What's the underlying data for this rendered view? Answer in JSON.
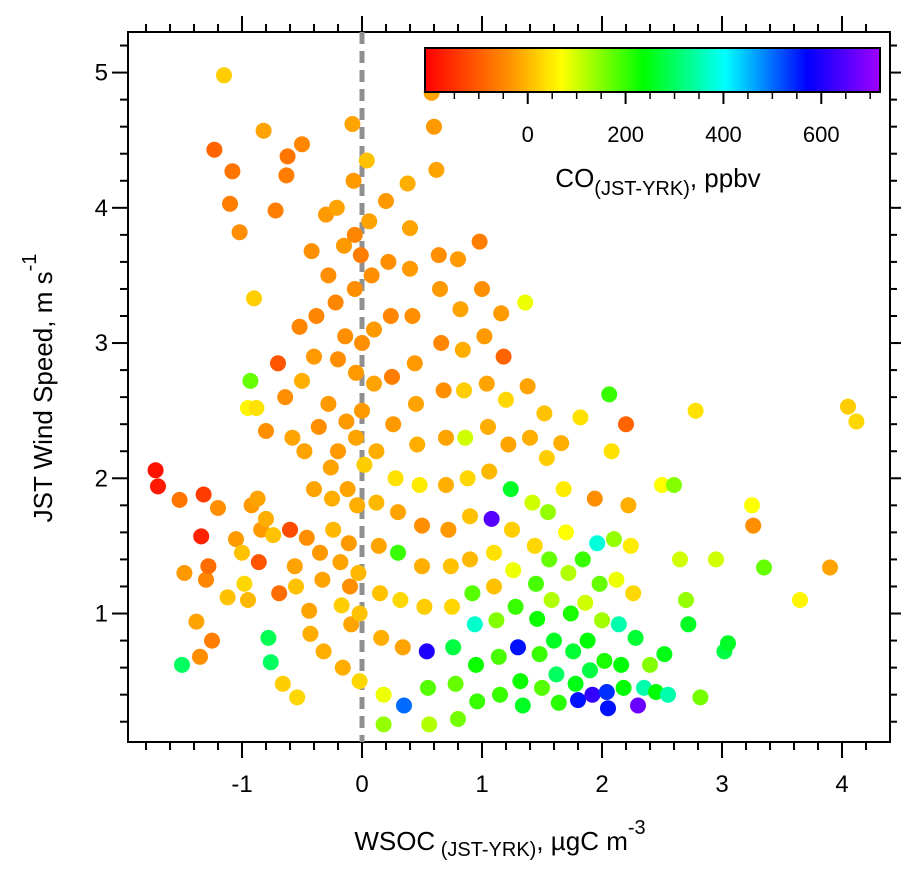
{
  "chart_data": {
    "type": "scatter",
    "xlabel": {
      "main": "WSOC",
      "sub": " (JST-YRK)",
      "mid": ", µgC m",
      "sup": "-3"
    },
    "ylabel": {
      "main": "JST Wind Speed, m s",
      "sup": "-1"
    },
    "xlim": [
      -1.95,
      4.4
    ],
    "ylim": [
      0.05,
      5.3
    ],
    "xticks": [
      "-1",
      "0",
      "1",
      "2",
      "3",
      "4"
    ],
    "yticks": [
      "1",
      "2",
      "3",
      "4",
      "5"
    ],
    "xtick_values": [
      -1,
      0,
      1,
      2,
      3,
      4
    ],
    "ytick_values": [
      1,
      2,
      3,
      4,
      5
    ],
    "reference_line": {
      "x": 0,
      "style": "dashed",
      "color": "#909090"
    },
    "colorbar": {
      "label_main": "CO",
      "label_sub": "(JST-YRK)",
      "label_rest": ", ppbv",
      "ticks": [
        "0",
        "200",
        "400",
        "600"
      ],
      "tick_values": [
        0,
        200,
        400,
        600
      ],
      "range": [
        -210,
        720
      ],
      "placement": "top-right"
    },
    "grid": false,
    "points": [
      [
        -1.72,
        2.06,
        -190
      ],
      [
        -1.7,
        1.94,
        -180
      ],
      [
        -1.52,
        1.84,
        -70
      ],
      [
        -1.5,
        0.62,
        300
      ],
      [
        -1.48,
        1.3,
        -30
      ],
      [
        -1.38,
        0.94,
        -20
      ],
      [
        -1.35,
        0.68,
        -40
      ],
      [
        -1.32,
        1.88,
        -140
      ],
      [
        -1.34,
        1.57,
        -170
      ],
      [
        -1.3,
        1.25,
        -50
      ],
      [
        -1.28,
        1.35,
        -80
      ],
      [
        -1.25,
        0.8,
        -60
      ],
      [
        -1.23,
        4.43,
        -90
      ],
      [
        -1.2,
        1.78,
        -40
      ],
      [
        -1.15,
        4.98,
        20
      ],
      [
        -1.12,
        1.12,
        10
      ],
      [
        -1.08,
        4.27,
        -70
      ],
      [
        -1.1,
        4.03,
        -60
      ],
      [
        -1.05,
        1.55,
        -30
      ],
      [
        -1.02,
        3.82,
        -40
      ],
      [
        -1.0,
        1.45,
        10
      ],
      [
        -0.98,
        1.22,
        30
      ],
      [
        -0.95,
        2.52,
        60
      ],
      [
        -0.93,
        2.72,
        170
      ],
      [
        -0.95,
        1.1,
        0
      ],
      [
        -0.92,
        1.8,
        -30
      ],
      [
        -0.9,
        3.33,
        20
      ],
      [
        -0.88,
        2.52,
        40
      ],
      [
        -0.87,
        1.85,
        -20
      ],
      [
        -0.86,
        1.38,
        -110
      ],
      [
        -0.84,
        1.62,
        -30
      ],
      [
        -0.82,
        4.57,
        -20
      ],
      [
        -0.8,
        2.35,
        -40
      ],
      [
        -0.8,
        1.7,
        -10
      ],
      [
        -0.78,
        0.82,
        290
      ],
      [
        -0.76,
        0.64,
        300
      ],
      [
        -0.74,
        1.58,
        10
      ],
      [
        -0.72,
        3.98,
        -60
      ],
      [
        -0.7,
        2.85,
        -110
      ],
      [
        -0.69,
        1.15,
        -80
      ],
      [
        -0.66,
        0.48,
        20
      ],
      [
        -0.64,
        2.6,
        -40
      ],
      [
        -0.63,
        4.24,
        -60
      ],
      [
        -0.62,
        4.38,
        -70
      ],
      [
        -0.6,
        1.62,
        -120
      ],
      [
        -0.58,
        2.3,
        -20
      ],
      [
        -0.56,
        1.35,
        -20
      ],
      [
        -0.55,
        1.2,
        10
      ],
      [
        -0.54,
        0.38,
        30
      ],
      [
        -0.52,
        3.12,
        -50
      ],
      [
        -0.5,
        4.47,
        -50
      ],
      [
        -0.5,
        2.72,
        -10
      ],
      [
        -0.48,
        2.2,
        -20
      ],
      [
        -0.46,
        1.56,
        -40
      ],
      [
        -0.44,
        1.02,
        -20
      ],
      [
        -0.43,
        0.85,
        -10
      ],
      [
        -0.42,
        3.68,
        -40
      ],
      [
        -0.4,
        2.9,
        -30
      ],
      [
        -0.4,
        1.92,
        -20
      ],
      [
        -0.38,
        3.2,
        -50
      ],
      [
        -0.36,
        2.38,
        -40
      ],
      [
        -0.35,
        1.45,
        -30
      ],
      [
        -0.33,
        1.25,
        -20
      ],
      [
        -0.32,
        0.72,
        -10
      ],
      [
        -0.3,
        3.95,
        -30
      ],
      [
        -0.28,
        3.5,
        -40
      ],
      [
        -0.28,
        2.55,
        -30
      ],
      [
        -0.26,
        2.08,
        -20
      ],
      [
        -0.25,
        1.85,
        -10
      ],
      [
        -0.24,
        1.62,
        0
      ],
      [
        -0.22,
        3.3,
        -50
      ],
      [
        -0.21,
        4.0,
        -20
      ],
      [
        -0.2,
        2.88,
        -40
      ],
      [
        -0.2,
        2.2,
        -30
      ],
      [
        -0.18,
        1.38,
        -20
      ],
      [
        -0.17,
        1.06,
        20
      ],
      [
        -0.16,
        0.6,
        -10
      ],
      [
        -0.15,
        3.72,
        -30
      ],
      [
        -0.14,
        3.05,
        -40
      ],
      [
        -0.13,
        2.42,
        -30
      ],
      [
        -0.12,
        1.92,
        -20
      ],
      [
        -0.11,
        1.52,
        -30
      ],
      [
        -0.1,
        1.2,
        -40
      ],
      [
        -0.09,
        0.92,
        -20
      ],
      [
        -0.08,
        4.62,
        -20
      ],
      [
        -0.07,
        4.2,
        -30
      ],
      [
        -0.06,
        3.8,
        -50
      ],
      [
        -0.06,
        3.4,
        -40
      ],
      [
        -0.05,
        2.78,
        -30
      ],
      [
        -0.05,
        2.3,
        -20
      ],
      [
        -0.04,
        1.8,
        -10
      ],
      [
        -0.03,
        1.3,
        0
      ],
      [
        -0.02,
        1.0,
        10
      ],
      [
        -0.02,
        0.5,
        30
      ],
      [
        -0.01,
        3.65,
        -60
      ],
      [
        0.0,
        3.0,
        -40
      ],
      [
        0.0,
        2.5,
        -30
      ],
      [
        0.02,
        2.1,
        20
      ],
      [
        0.04,
        4.35,
        10
      ],
      [
        0.06,
        3.9,
        -20
      ],
      [
        0.08,
        3.5,
        -40
      ],
      [
        0.1,
        3.1,
        -30
      ],
      [
        0.1,
        2.7,
        -20
      ],
      [
        0.12,
        2.2,
        -10
      ],
      [
        0.12,
        1.82,
        0
      ],
      [
        0.14,
        1.5,
        -20
      ],
      [
        0.15,
        1.15,
        10
      ],
      [
        0.16,
        0.82,
        -10
      ],
      [
        0.18,
        0.4,
        80
      ],
      [
        0.18,
        0.18,
        140
      ],
      [
        0.2,
        4.05,
        -30
      ],
      [
        0.22,
        3.6,
        -40
      ],
      [
        0.24,
        3.2,
        -50
      ],
      [
        0.25,
        2.75,
        -60
      ],
      [
        0.26,
        2.4,
        -30
      ],
      [
        0.28,
        2.0,
        40
      ],
      [
        0.3,
        1.75,
        -20
      ],
      [
        0.3,
        1.45,
        200
      ],
      [
        0.32,
        1.1,
        30
      ],
      [
        0.34,
        0.75,
        -20
      ],
      [
        0.35,
        0.32,
        500
      ],
      [
        0.38,
        4.18,
        -10
      ],
      [
        0.4,
        3.85,
        -20
      ],
      [
        0.4,
        3.55,
        -30
      ],
      [
        0.42,
        3.2,
        -40
      ],
      [
        0.44,
        2.85,
        -30
      ],
      [
        0.45,
        2.55,
        -20
      ],
      [
        0.46,
        2.25,
        -10
      ],
      [
        0.48,
        1.95,
        50
      ],
      [
        0.5,
        1.65,
        -40
      ],
      [
        0.5,
        1.35,
        -10
      ],
      [
        0.52,
        1.05,
        20
      ],
      [
        0.54,
        0.72,
        600
      ],
      [
        0.55,
        0.45,
        180
      ],
      [
        0.56,
        0.18,
        120
      ],
      [
        0.58,
        4.85,
        -20
      ],
      [
        0.6,
        4.6,
        -30
      ],
      [
        0.62,
        4.28,
        -20
      ],
      [
        0.64,
        3.65,
        -40
      ],
      [
        0.65,
        3.4,
        -30
      ],
      [
        0.66,
        3.0,
        -50
      ],
      [
        0.68,
        2.65,
        -40
      ],
      [
        0.7,
        2.3,
        -20
      ],
      [
        0.7,
        1.95,
        -10
      ],
      [
        0.72,
        1.62,
        -30
      ],
      [
        0.74,
        1.35,
        10
      ],
      [
        0.75,
        1.05,
        30
      ],
      [
        0.76,
        0.75,
        280
      ],
      [
        0.78,
        0.48,
        170
      ],
      [
        0.8,
        0.22,
        160
      ],
      [
        0.8,
        3.62,
        -30
      ],
      [
        0.82,
        3.25,
        -20
      ],
      [
        0.84,
        2.95,
        -10
      ],
      [
        0.85,
        2.65,
        20
      ],
      [
        0.86,
        2.3,
        100
      ],
      [
        0.88,
        2.0,
        30
      ],
      [
        0.9,
        1.72,
        10
      ],
      [
        0.9,
        1.4,
        0
      ],
      [
        0.92,
        1.15,
        180
      ],
      [
        0.94,
        0.92,
        370
      ],
      [
        0.95,
        0.62,
        230
      ],
      [
        0.96,
        0.35,
        200
      ],
      [
        0.98,
        3.75,
        -60
      ],
      [
        1.0,
        3.4,
        -40
      ],
      [
        1.02,
        3.05,
        -30
      ],
      [
        1.04,
        2.7,
        -20
      ],
      [
        1.05,
        2.38,
        -10
      ],
      [
        1.06,
        2.05,
        0
      ],
      [
        1.08,
        1.7,
        650
      ],
      [
        1.1,
        1.45,
        40
      ],
      [
        1.1,
        1.2,
        10
      ],
      [
        1.12,
        0.95,
        150
      ],
      [
        1.14,
        0.68,
        190
      ],
      [
        1.15,
        0.4,
        200
      ],
      [
        1.16,
        3.22,
        -30
      ],
      [
        1.18,
        2.9,
        -90
      ],
      [
        1.2,
        2.58,
        30
      ],
      [
        1.22,
        2.25,
        -20
      ],
      [
        1.24,
        1.92,
        260
      ],
      [
        1.25,
        1.62,
        20
      ],
      [
        1.26,
        1.32,
        80
      ],
      [
        1.28,
        1.05,
        200
      ],
      [
        1.3,
        0.75,
        560
      ],
      [
        1.32,
        0.5,
        230
      ],
      [
        1.34,
        0.32,
        260
      ],
      [
        1.36,
        3.3,
        80
      ],
      [
        1.38,
        2.68,
        -20
      ],
      [
        1.4,
        2.3,
        -10
      ],
      [
        1.42,
        1.82,
        100
      ],
      [
        1.44,
        1.5,
        30
      ],
      [
        1.45,
        1.22,
        190
      ],
      [
        1.46,
        0.96,
        230
      ],
      [
        1.48,
        0.7,
        200
      ],
      [
        1.5,
        0.45,
        180
      ],
      [
        1.52,
        2.48,
        10
      ],
      [
        1.54,
        2.15,
        20
      ],
      [
        1.55,
        1.75,
        140
      ],
      [
        1.56,
        1.4,
        170
      ],
      [
        1.58,
        1.1,
        120
      ],
      [
        1.6,
        0.8,
        260
      ],
      [
        1.62,
        0.55,
        300
      ],
      [
        1.64,
        0.34,
        210
      ],
      [
        1.66,
        2.26,
        -10
      ],
      [
        1.68,
        1.92,
        50
      ],
      [
        1.7,
        1.6,
        70
      ],
      [
        1.72,
        1.3,
        120
      ],
      [
        1.74,
        1.0,
        220
      ],
      [
        1.76,
        0.72,
        270
      ],
      [
        1.78,
        0.48,
        250
      ],
      [
        1.8,
        0.36,
        560
      ],
      [
        1.82,
        2.45,
        40
      ],
      [
        1.84,
        1.4,
        200
      ],
      [
        1.86,
        1.08,
        100
      ],
      [
        1.88,
        0.8,
        240
      ],
      [
        1.9,
        0.58,
        280
      ],
      [
        1.92,
        0.4,
        620
      ],
      [
        1.94,
        1.85,
        -40
      ],
      [
        1.96,
        1.52,
        380
      ],
      [
        1.98,
        1.22,
        170
      ],
      [
        2.0,
        0.95,
        130
      ],
      [
        2.02,
        0.65,
        220
      ],
      [
        2.04,
        0.42,
        540
      ],
      [
        2.05,
        0.3,
        560
      ],
      [
        2.06,
        2.62,
        200
      ],
      [
        2.08,
        2.2,
        40
      ],
      [
        2.1,
        1.55,
        140
      ],
      [
        2.12,
        1.25,
        80
      ],
      [
        2.14,
        0.92,
        350
      ],
      [
        2.16,
        0.62,
        240
      ],
      [
        2.18,
        0.45,
        240
      ],
      [
        2.2,
        2.4,
        -90
      ],
      [
        2.22,
        1.8,
        -10
      ],
      [
        2.24,
        1.5,
        50
      ],
      [
        2.26,
        1.15,
        30
      ],
      [
        2.28,
        0.82,
        270
      ],
      [
        2.3,
        0.32,
        670
      ],
      [
        2.35,
        0.45,
        350
      ],
      [
        2.4,
        0.62,
        150
      ],
      [
        2.45,
        0.42,
        240
      ],
      [
        2.5,
        1.95,
        70
      ],
      [
        2.52,
        0.7,
        250
      ],
      [
        2.55,
        0.4,
        350
      ],
      [
        2.6,
        1.95,
        150
      ],
      [
        2.65,
        1.4,
        100
      ],
      [
        2.7,
        1.1,
        140
      ],
      [
        2.72,
        0.92,
        260
      ],
      [
        2.78,
        2.5,
        40
      ],
      [
        2.82,
        0.38,
        160
      ],
      [
        2.95,
        1.4,
        100
      ],
      [
        3.02,
        0.72,
        280
      ],
      [
        3.05,
        0.78,
        260
      ],
      [
        3.25,
        1.8,
        70
      ],
      [
        3.26,
        1.65,
        -40
      ],
      [
        3.35,
        1.34,
        170
      ],
      [
        3.65,
        1.1,
        60
      ],
      [
        3.9,
        1.34,
        -20
      ],
      [
        4.05,
        2.53,
        20
      ],
      [
        4.12,
        2.42,
        30
      ]
    ]
  }
}
